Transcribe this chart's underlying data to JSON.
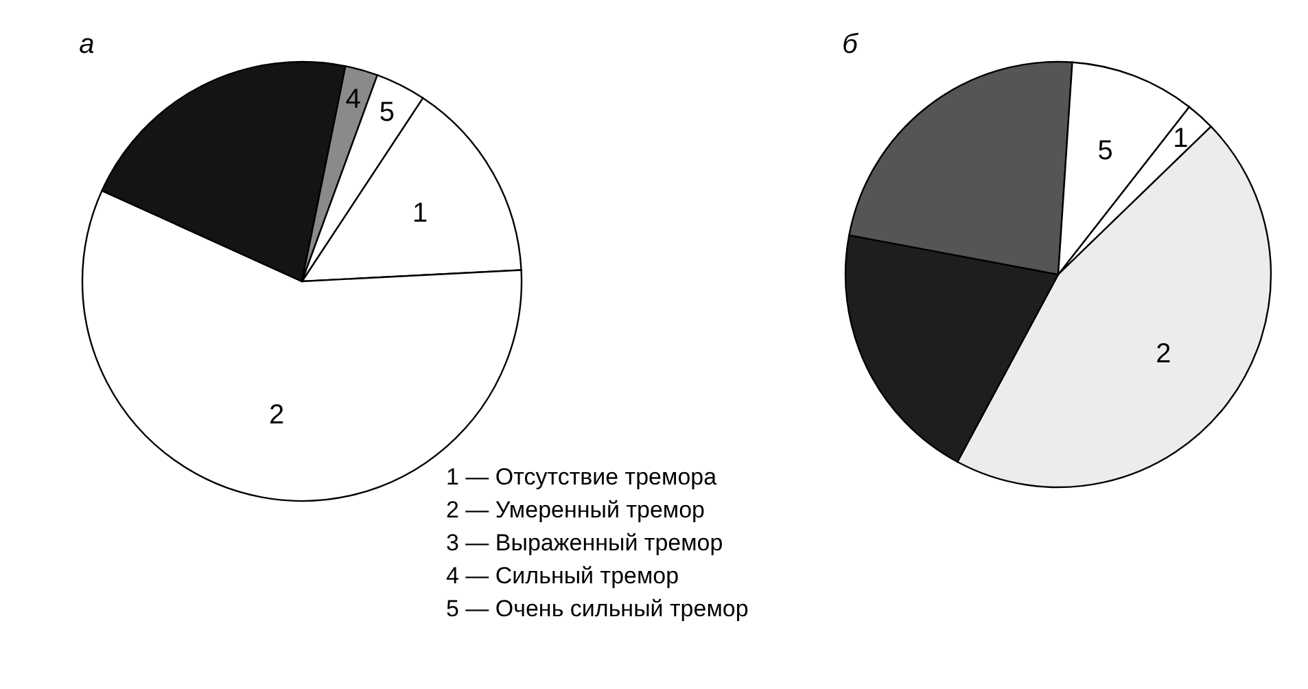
{
  "chart_data": [
    {
      "type": "pie",
      "title": "а",
      "categories": [
        "1",
        "2",
        null,
        "4",
        "5"
      ],
      "values": [
        14.9,
        57.6,
        21.4,
        2.4,
        3.7
      ],
      "colors": [
        "#ffffff",
        "#ffffff",
        "#141414",
        "#8a8a8a",
        "#ffffff"
      ],
      "annotations": [
        "1 — Отсутствие тремора",
        "2 — Умеренный тремор",
        "3 — Выраженный тремор",
        "4 — Сильный тремор",
        "5 — Очень сильный тремор"
      ]
    },
    {
      "type": "pie",
      "title": "б",
      "categories": [
        "1",
        "2",
        null,
        null,
        "5"
      ],
      "values": [
        2.2,
        45.1,
        20.1,
        23.1,
        9.5
      ],
      "colors": [
        "#ffffff",
        "#ececec",
        "#1e1e1e",
        "#555555",
        "#ffffff"
      ]
    }
  ]
}
